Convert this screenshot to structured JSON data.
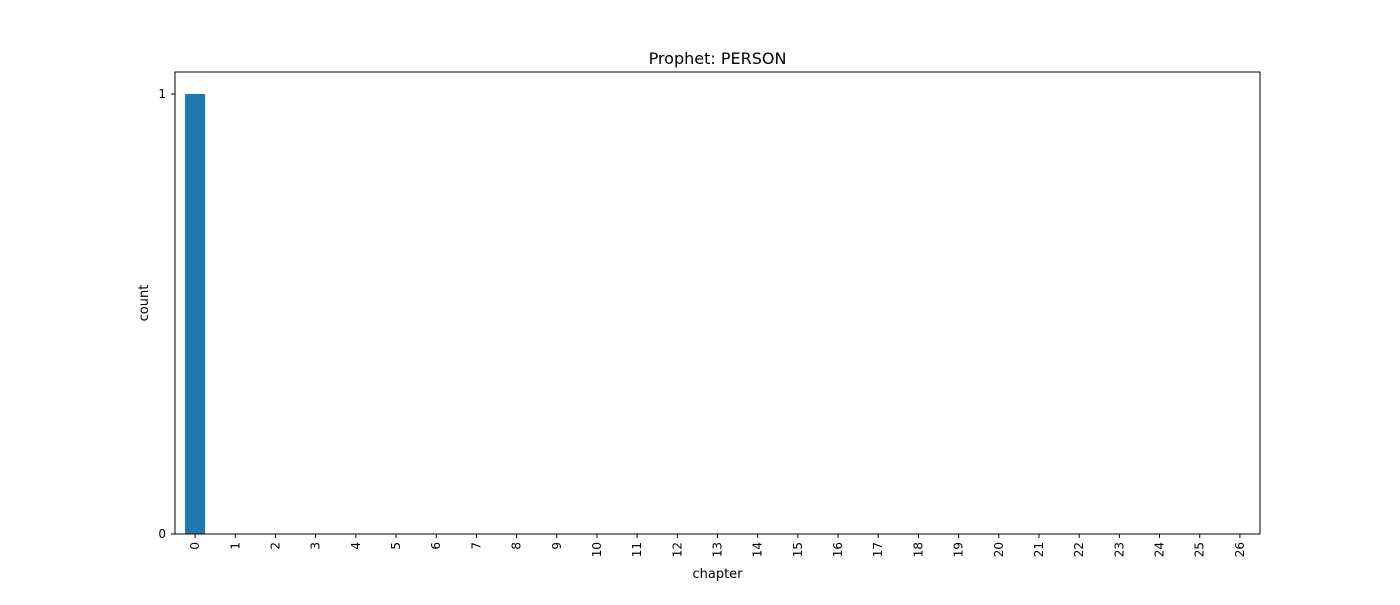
{
  "chart_data": {
    "type": "bar",
    "title": "Prophet: PERSON",
    "xlabel": "chapter",
    "ylabel": "count",
    "categories": [
      "0",
      "1",
      "2",
      "3",
      "4",
      "5",
      "6",
      "7",
      "8",
      "9",
      "10",
      "11",
      "12",
      "13",
      "14",
      "15",
      "16",
      "17",
      "18",
      "19",
      "20",
      "21",
      "22",
      "23",
      "24",
      "25",
      "26"
    ],
    "values": [
      1,
      0,
      0,
      0,
      0,
      0,
      0,
      0,
      0,
      0,
      0,
      0,
      0,
      0,
      0,
      0,
      0,
      0,
      0,
      0,
      0,
      0,
      0,
      0,
      0,
      0,
      0
    ],
    "ylim": [
      0,
      1.05
    ],
    "yticks": [
      0,
      1
    ],
    "bar_color": "#1f77b4",
    "grid": false,
    "legend": false
  }
}
